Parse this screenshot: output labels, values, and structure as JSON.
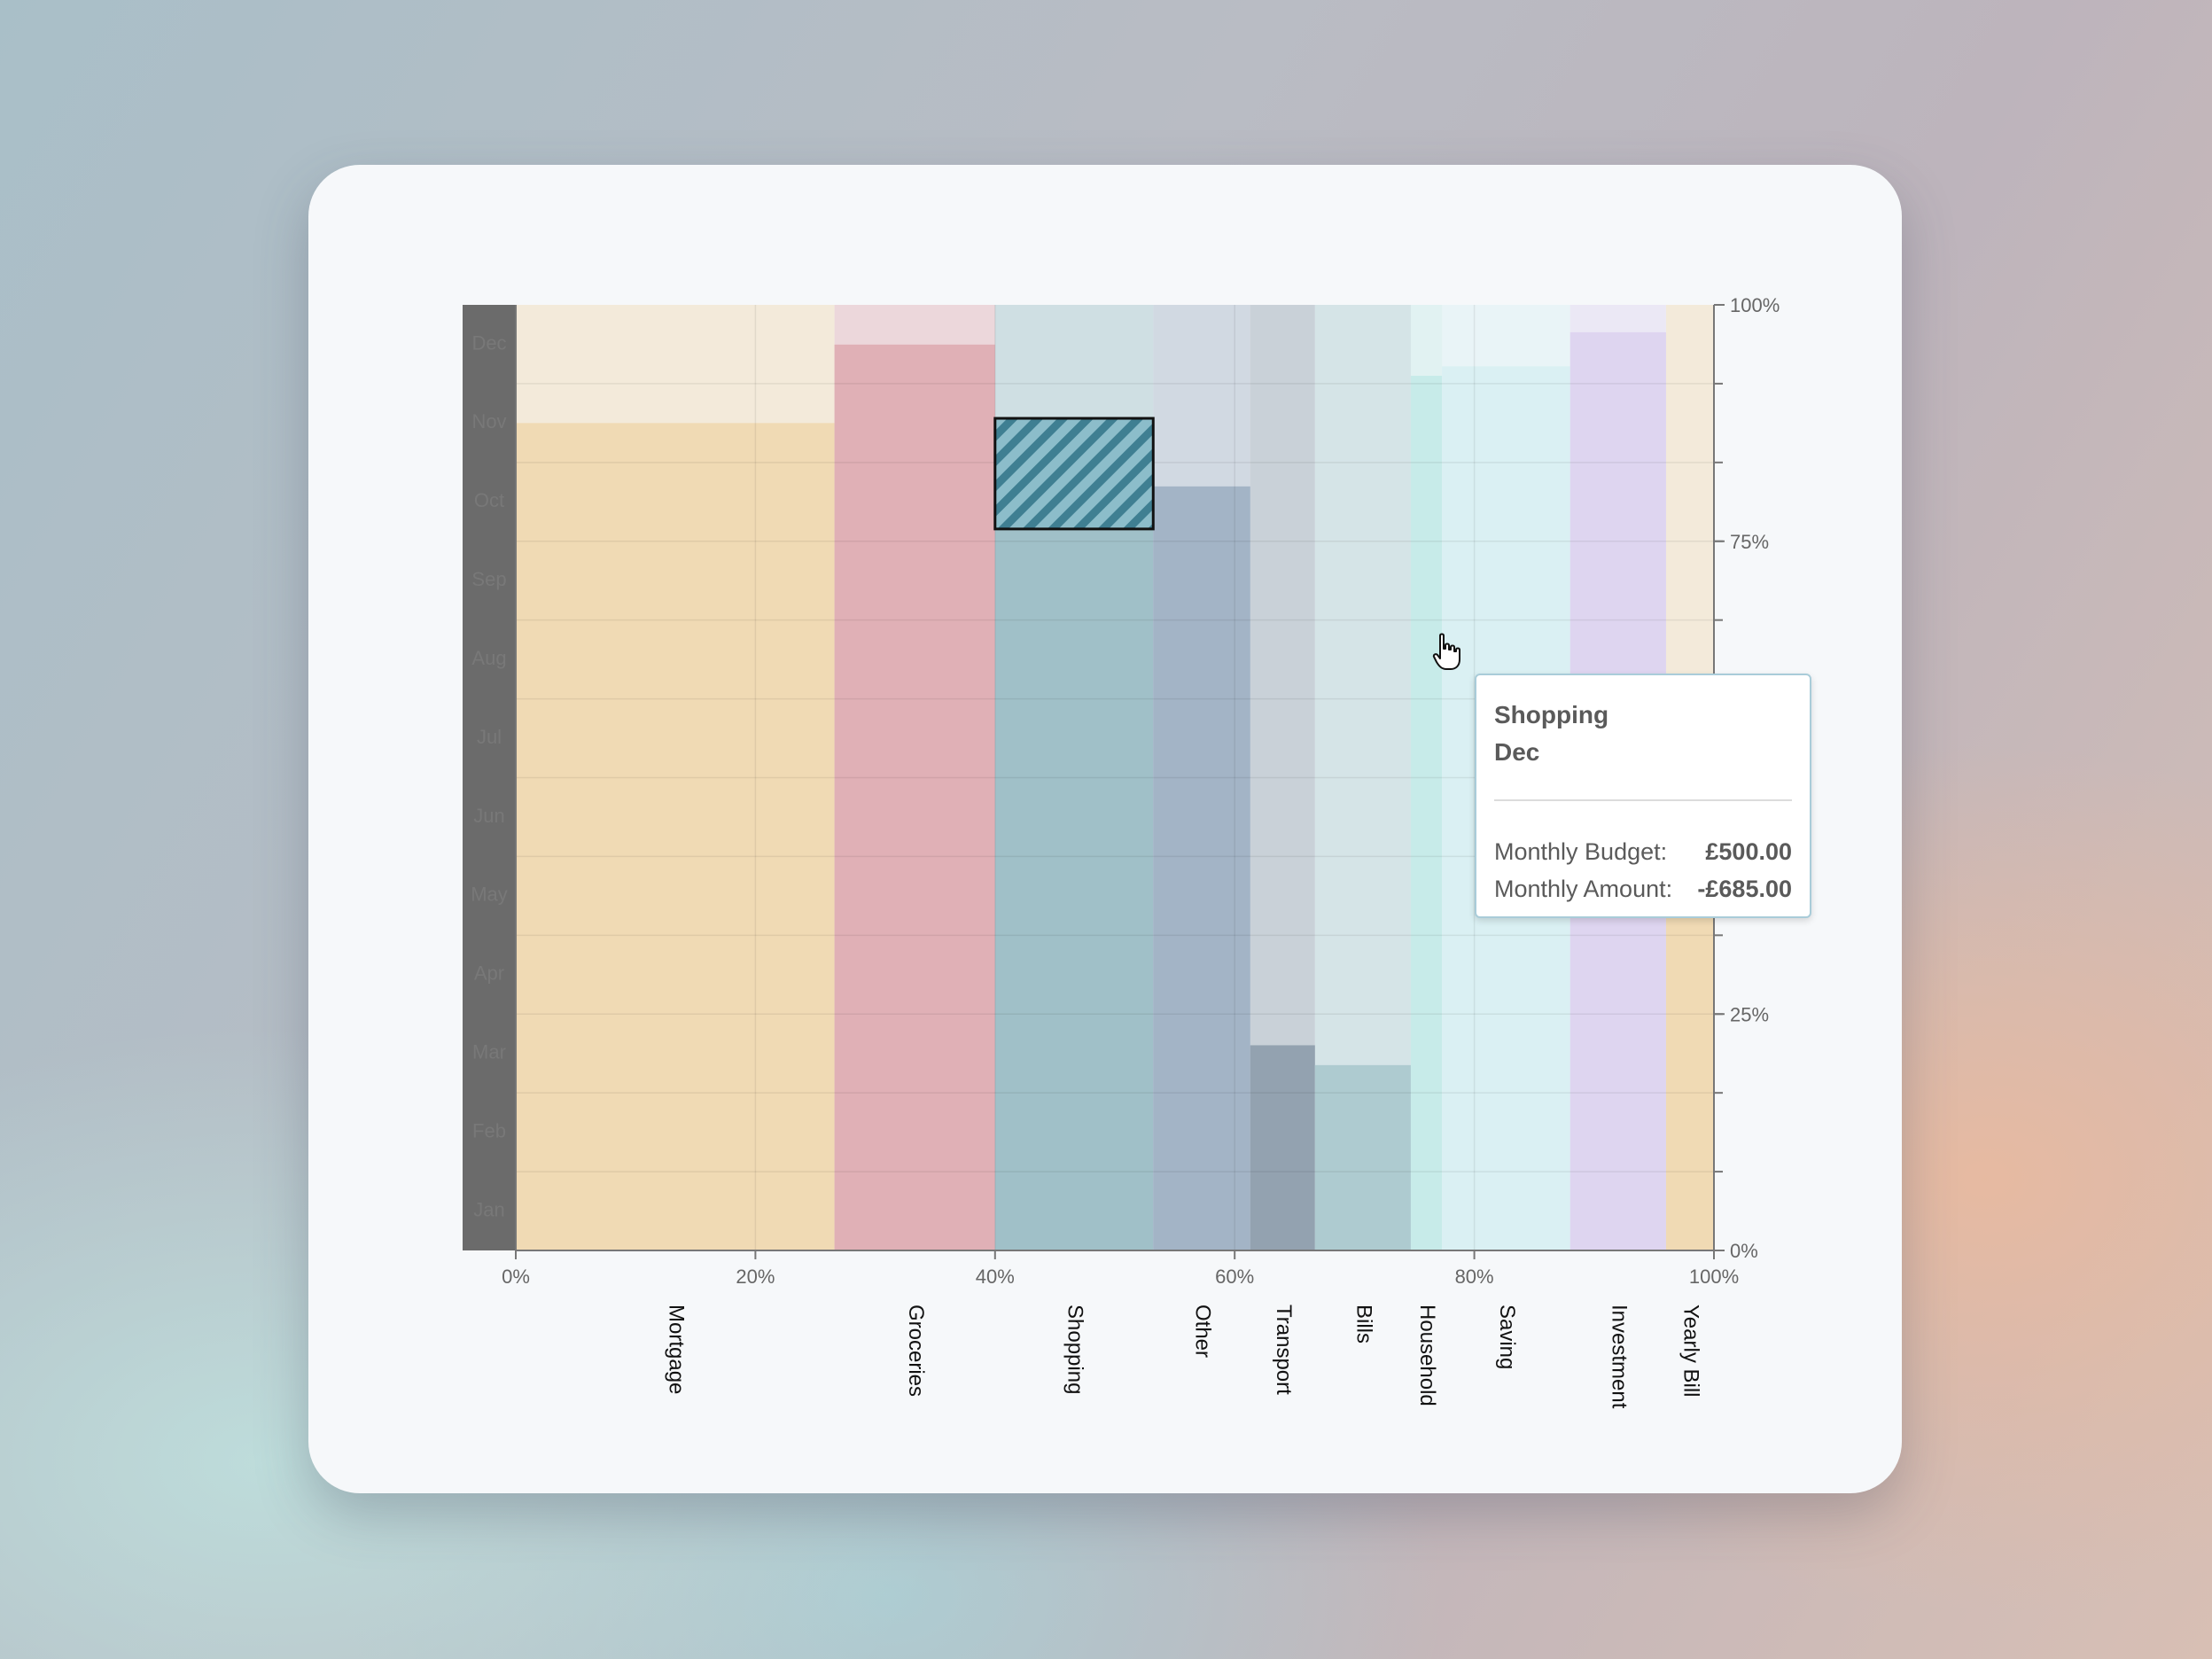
{
  "chart_data": {
    "type": "bar",
    "subtype": "marimekko",
    "x_ticks": [
      "0%",
      "20%",
      "40%",
      "60%",
      "80%",
      "100%"
    ],
    "y_ticks": [
      "0%",
      "25%",
      "50%",
      "75%",
      "100%"
    ],
    "months": [
      "Jan",
      "Feb",
      "Mar",
      "Apr",
      "May",
      "Jun",
      "Jul",
      "Aug",
      "Sep",
      "Oct",
      "Nov",
      "Dec"
    ],
    "categories": [
      {
        "name": "Mortgage",
        "start_pct": 0,
        "end_pct": 26.6,
        "filled_pct": 87.5,
        "color": "#f0dab4"
      },
      {
        "name": "Groceries",
        "start_pct": 26.6,
        "end_pct": 40.0,
        "filled_pct": 95.8,
        "color": "#e0b0b6"
      },
      {
        "name": "Shopping",
        "start_pct": 40.0,
        "end_pct": 53.2,
        "filled_pct": 80.8,
        "color": "#a0c0c8"
      },
      {
        "name": "Other",
        "start_pct": 53.2,
        "end_pct": 61.3,
        "filled_pct": 80.8,
        "color": "#a3b4c6"
      },
      {
        "name": "Transport",
        "start_pct": 61.3,
        "end_pct": 66.7,
        "filled_pct": 21.7,
        "color": "#93a2b0"
      },
      {
        "name": "Bills",
        "start_pct": 66.7,
        "end_pct": 74.7,
        "filled_pct": 19.6,
        "color": "#aecbd0"
      },
      {
        "name": "Household",
        "start_pct": 74.7,
        "end_pct": 77.3,
        "filled_pct": 92.5,
        "color": "#c7ebe9"
      },
      {
        "name": "Saving",
        "start_pct": 77.3,
        "end_pct": 88.0,
        "filled_pct": 93.5,
        "color": "#daf0f3"
      },
      {
        "name": "Investment",
        "start_pct": 88.0,
        "end_pct": 96.0,
        "filled_pct": 97.1,
        "color": "#ded5f0"
      },
      {
        "name": "Yearly Bill",
        "start_pct": 96.0,
        "end_pct": 100,
        "filled_pct": 38.8,
        "color": "#f0dab4"
      }
    ],
    "highlight": {
      "category": "Shopping",
      "month": "Dec",
      "from_pct": 76.3,
      "to_pct": 88.0,
      "color": "#3f7f92"
    },
    "ylim": [
      0,
      100
    ],
    "grid": true
  },
  "tooltip": {
    "title": "Shopping",
    "subtitle": "Dec",
    "rows": [
      {
        "label": "Monthly Budget:",
        "value": "£500.00"
      },
      {
        "label": "Monthly Amount:",
        "value": "-£685.00"
      }
    ]
  }
}
